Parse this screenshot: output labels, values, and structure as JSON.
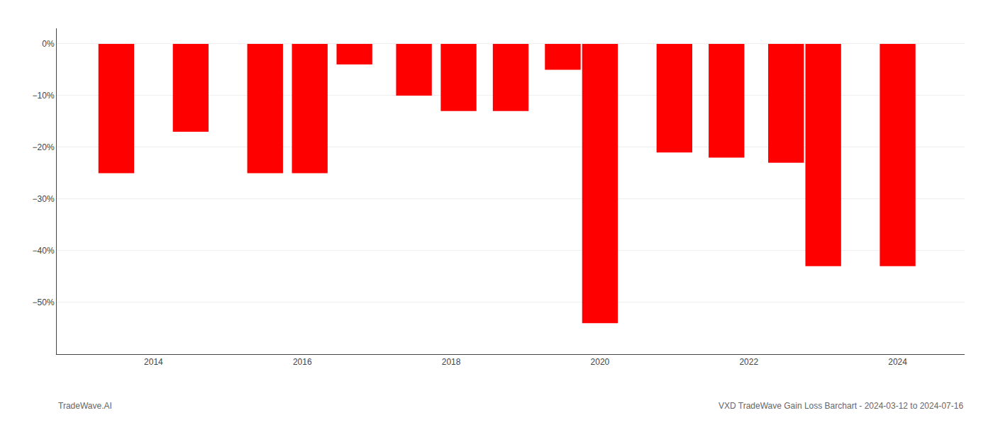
{
  "chart_data": {
    "type": "bar",
    "x": [
      2013.5,
      2014.5,
      2015.5,
      2016.1,
      2016.7,
      2017.5,
      2018.1,
      2018.8,
      2019.5,
      2020.0,
      2021.0,
      2021.7,
      2022.5,
      2023.0,
      2024.0
    ],
    "values": [
      -25.0,
      -17.0,
      -25.0,
      -25.0,
      -4.0,
      -10.0,
      -13.0,
      -13.0,
      -5.0,
      -54.0,
      -21.0,
      -22.0,
      -23.0,
      -43.0,
      -43.0
    ],
    "color": "#ff0000",
    "xlim": [
      2012.7,
      2024.9
    ],
    "xticks": [
      2014,
      2016,
      2018,
      2020,
      2022,
      2024
    ],
    "ylim": [
      -60,
      3
    ],
    "yticks": [
      {
        "value": 0,
        "label": "0%"
      },
      {
        "value": -10,
        "label": "−10%"
      },
      {
        "value": -20,
        "label": "−20%"
      },
      {
        "value": -30,
        "label": "−30%"
      },
      {
        "value": -40,
        "label": "−40%"
      },
      {
        "value": -50,
        "label": "−50%"
      }
    ],
    "grid": "y",
    "annotations": [
      "TradeWave.AI",
      "VXD TradeWave Gain Loss Barchart - 2024-03-12 to 2024-07-16"
    ]
  }
}
